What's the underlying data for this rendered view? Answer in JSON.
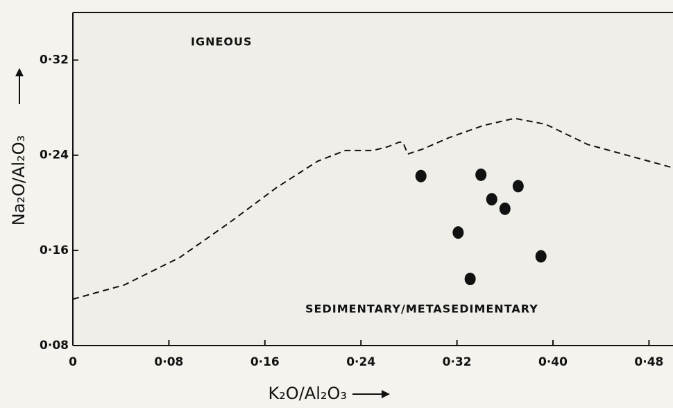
{
  "chart_data": {
    "type": "scatter",
    "xlabel": "K₂O/Al₂O₃",
    "ylabel": "Na₂O/Al₂O₃",
    "annotations": [
      "IGNEOUS",
      "SEDIMENTARY/METASEDIMENTARY"
    ],
    "xlim": [
      0,
      0.5
    ],
    "ylim": [
      0.08,
      0.36
    ],
    "xticks": [
      {
        "value": 0,
        "label": "0"
      },
      {
        "value": 0.08,
        "label": "0·08"
      },
      {
        "value": 0.16,
        "label": "0·16"
      },
      {
        "value": 0.24,
        "label": "0·24"
      },
      {
        "value": 0.32,
        "label": "0·32"
      },
      {
        "value": 0.4,
        "label": "0·40"
      },
      {
        "value": 0.48,
        "label": "0·48"
      }
    ],
    "yticks": [
      {
        "value": 0.08,
        "label": "0·08"
      },
      {
        "value": 0.16,
        "label": "0·16"
      },
      {
        "value": 0.24,
        "label": "0·24"
      },
      {
        "value": 0.32,
        "label": "0·32"
      }
    ],
    "points": {
      "color": "#111111",
      "x": [
        0.29,
        0.34,
        0.371,
        0.349,
        0.36,
        0.321,
        0.39,
        0.331
      ],
      "y": [
        0.2225,
        0.2236,
        0.214,
        0.203,
        0.195,
        0.175,
        0.155,
        0.136
      ]
    },
    "boundary": {
      "color": "#111111",
      "x": [
        0,
        0.043,
        0.089,
        0.13,
        0.17,
        0.204,
        0.227,
        0.25,
        0.262,
        0.272,
        0.275,
        0.279,
        0.291,
        0.314,
        0.342,
        0.368,
        0.394,
        0.429,
        0.469,
        0.498
      ],
      "y": [
        0.119,
        0.131,
        0.154,
        0.183,
        0.213,
        0.235,
        0.244,
        0.244,
        0.247,
        0.251,
        0.251,
        0.241,
        0.245,
        0.255,
        0.265,
        0.271,
        0.266,
        0.249,
        0.238,
        0.23
      ]
    }
  }
}
